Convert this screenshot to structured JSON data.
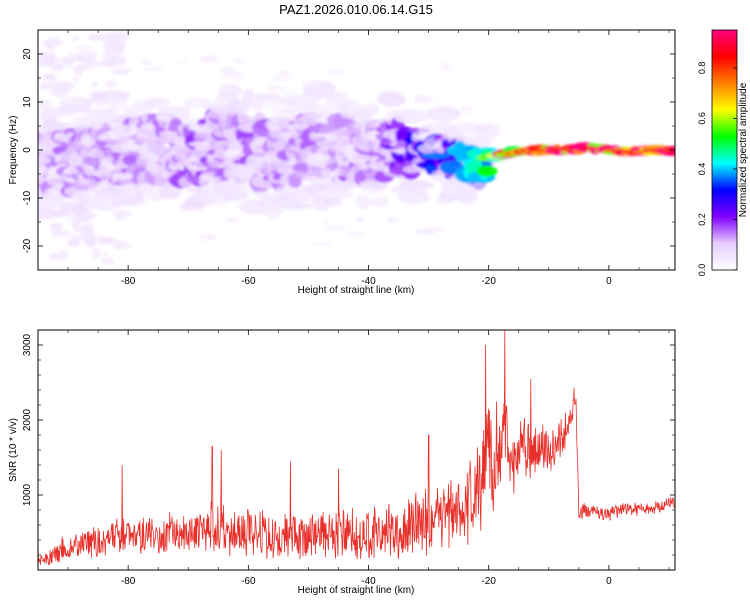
{
  "chart_data": [
    {
      "type": "heatmap",
      "title": "PAZ1.2026.010.06.14.G15",
      "xlabel": "Height of straight line (km)",
      "ylabel": "Frequency (Hz)",
      "xlim": [
        -95,
        11
      ],
      "ylim": [
        -25,
        25
      ],
      "xticks": [
        -80,
        -60,
        -40,
        -20,
        0
      ],
      "yticks": [
        -20,
        -10,
        0,
        10,
        20
      ],
      "colorbar": {
        "label": "Normalized spectral amplitude",
        "range": [
          0,
          0.95
        ],
        "ticks": [
          0.0,
          0.2,
          0.4,
          0.6,
          0.8
        ],
        "colors": [
          "#ffffff",
          "#e6ccff",
          "#8000ff",
          "#0000ff",
          "#00ffff",
          "#00ff00",
          "#ffff00",
          "#ff8000",
          "#ff0000",
          "#ff0080"
        ]
      },
      "ridge": {
        "x": [
          -93,
          -88,
          -84,
          -80,
          -76,
          -72,
          -68,
          -64,
          -60,
          -56,
          -52,
          -48,
          -44,
          -40,
          -36,
          -32,
          -28,
          -24,
          -22,
          -20,
          -18,
          -16,
          -12,
          -8,
          -4,
          0,
          4,
          8,
          11
        ],
        "y": [
          -2,
          -2,
          -1,
          0,
          0,
          -1,
          0,
          1,
          0,
          -1,
          0,
          1,
          0,
          -1,
          0,
          0,
          -1,
          -2,
          -4,
          -2,
          -1,
          -0.5,
          0,
          0,
          0.5,
          0,
          -0.5,
          0,
          0
        ],
        "amplitude": [
          0.12,
          0.14,
          0.12,
          0.13,
          0.13,
          0.14,
          0.15,
          0.13,
          0.14,
          0.12,
          0.13,
          0.12,
          0.13,
          0.12,
          0.18,
          0.25,
          0.3,
          0.32,
          0.35,
          0.5,
          0.62,
          0.72,
          0.82,
          0.88,
          0.9,
          0.86,
          0.8,
          0.85,
          0.82
        ],
        "spread_hz": [
          6,
          6,
          6,
          6,
          6,
          6,
          6,
          6,
          6,
          6,
          6,
          6,
          6,
          6,
          5,
          4,
          3,
          3,
          3,
          2,
          1.5,
          1,
          1,
          1,
          1,
          1,
          1,
          1,
          1
        ]
      }
    },
    {
      "type": "line",
      "title": "",
      "xlabel": "Height of straight line (km)",
      "ylabel": "SNR (10 * v/v)",
      "xlim": [
        -95,
        11
      ],
      "ylim": [
        0,
        3200
      ],
      "xticks": [
        -80,
        -60,
        -40,
        -20,
        0
      ],
      "yticks": [
        1000,
        2000,
        3000
      ],
      "series": [
        {
          "name": "SNR",
          "color": "#e8302a",
          "x": [
            -95,
            -93,
            -91,
            -89,
            -87,
            -85,
            -83,
            -81,
            -79,
            -77,
            -75,
            -73,
            -71,
            -69,
            -67,
            -65,
            -63,
            -61,
            -59,
            -57,
            -55,
            -53,
            -51,
            -49,
            -47,
            -45,
            -43,
            -41,
            -39,
            -37,
            -35,
            -33,
            -31,
            -29,
            -27,
            -25,
            -23,
            -21,
            -20,
            -19,
            -18,
            -17,
            -16,
            -15,
            -14,
            -13,
            -12,
            -11,
            -10,
            -9,
            -8,
            -7,
            -6,
            -5.5,
            -5,
            -4,
            -2,
            0,
            2,
            4,
            6,
            8,
            10,
            11
          ],
          "y": [
            100,
            180,
            280,
            300,
            380,
            350,
            420,
            480,
            430,
            500,
            460,
            480,
            520,
            500,
            620,
            560,
            520,
            500,
            480,
            480,
            460,
            460,
            440,
            480,
            460,
            450,
            480,
            470,
            500,
            520,
            520,
            580,
            640,
            650,
            740,
            820,
            900,
            1200,
            1800,
            1100,
            1500,
            1900,
            1300,
            1600,
            1750,
            1450,
            1650,
            1700,
            1500,
            1600,
            1750,
            1850,
            2300,
            2400,
            780,
            800,
            780,
            760,
            800,
            820,
            800,
            840,
            880,
            900
          ],
          "noise": [
            60,
            150,
            180,
            200,
            250,
            250,
            280,
            300,
            300,
            320,
            320,
            340,
            350,
            360,
            380,
            400,
            380,
            380,
            370,
            380,
            370,
            360,
            360,
            380,
            380,
            380,
            400,
            400,
            400,
            420,
            430,
            450,
            480,
            500,
            550,
            600,
            650,
            700,
            650,
            650,
            600,
            600,
            550,
            500,
            450,
            420,
            400,
            380,
            380,
            360,
            340,
            320,
            300,
            250,
            120,
            120,
            120,
            120,
            120,
            120,
            120,
            120,
            120,
            120
          ],
          "peaks": [
            [
              -95,
              350
            ],
            [
              -81,
              1400
            ],
            [
              -66,
              1650
            ],
            [
              -64.5,
              1600
            ],
            [
              -53,
              1450
            ],
            [
              -45,
              1350
            ],
            [
              -30,
              1800
            ],
            [
              -20.5,
              3000
            ],
            [
              -18.7,
              2250
            ],
            [
              -17.3,
              3200
            ],
            [
              -13,
              2550
            ]
          ]
        }
      ]
    }
  ]
}
